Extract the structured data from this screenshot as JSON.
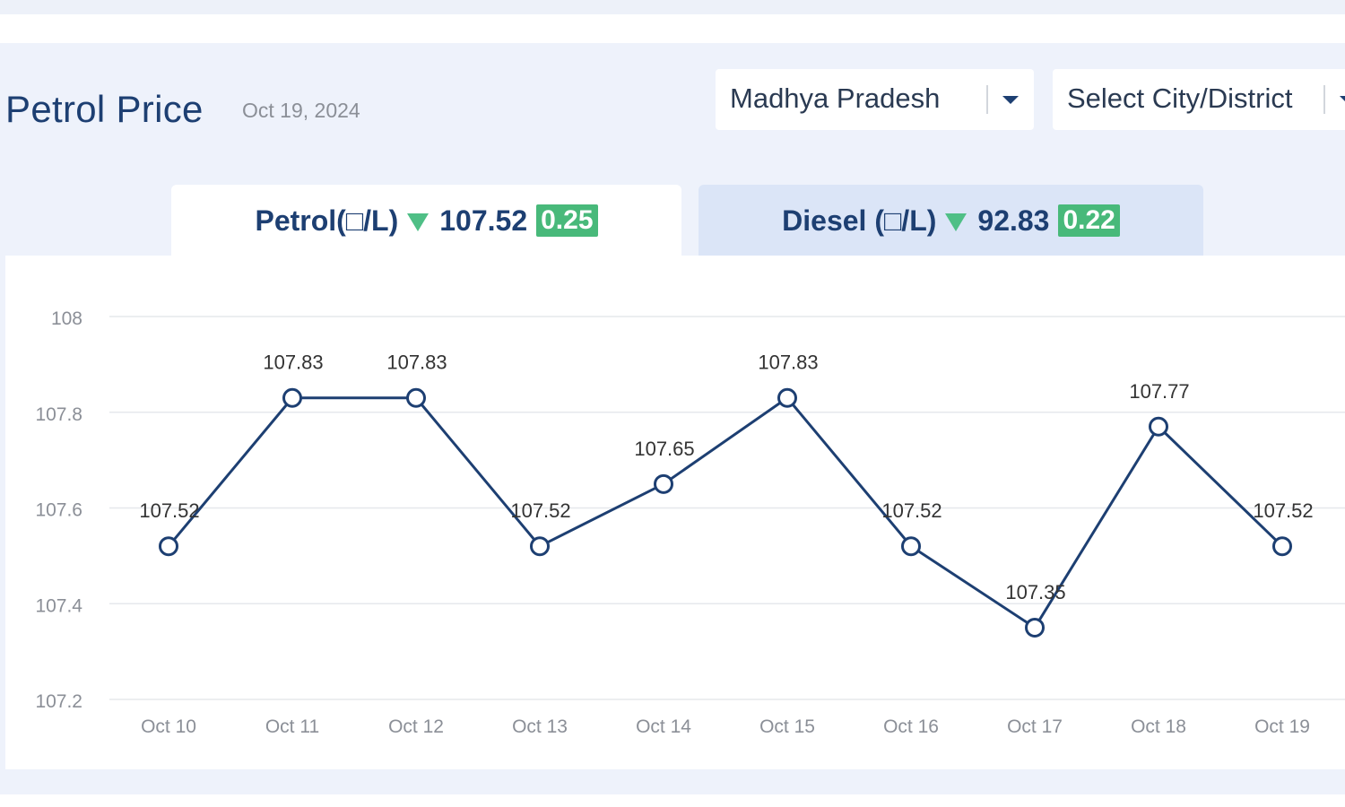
{
  "header": {
    "title": "Petrol Price",
    "date": "Oct 19, 2024"
  },
  "filters": {
    "state": "Madhya Pradesh",
    "city_placeholder": "Select City/District"
  },
  "tabs": [
    {
      "label": "Petrol(□/L)",
      "price": "107.52",
      "change": "0.25",
      "trend": "down",
      "active": true
    },
    {
      "label": "Diesel (□/L)",
      "price": "92.83",
      "change": "0.22",
      "trend": "down",
      "active": false
    }
  ],
  "colors": {
    "line": "#1d3f72",
    "change_badge": "#48b97a",
    "down_arrow": "#4fbf86",
    "active_tab": "#ffffff",
    "inactive_tab": "#dbe5f7"
  },
  "chart_data": {
    "type": "line",
    "title": "",
    "xlabel": "",
    "ylabel": "",
    "categories": [
      "Oct 10",
      "Oct 11",
      "Oct 12",
      "Oct 13",
      "Oct 14",
      "Oct 15",
      "Oct 16",
      "Oct 17",
      "Oct 18",
      "Oct 19"
    ],
    "series": [
      {
        "values": [
          107.52,
          107.83,
          107.83,
          107.52,
          107.65,
          107.83,
          107.52,
          107.35,
          107.77,
          107.52
        ]
      }
    ],
    "data_labels": [
      "107.52",
      "107.83",
      "107.83",
      "107.52",
      "107.65",
      "107.83",
      "107.52",
      "107.35",
      "107.77",
      "107.52"
    ],
    "y_ticks": [
      "107.2",
      "107.4",
      "107.6",
      "107.8",
      "108"
    ],
    "ylim": [
      107.2,
      108
    ],
    "grid": true,
    "legend": "none"
  }
}
